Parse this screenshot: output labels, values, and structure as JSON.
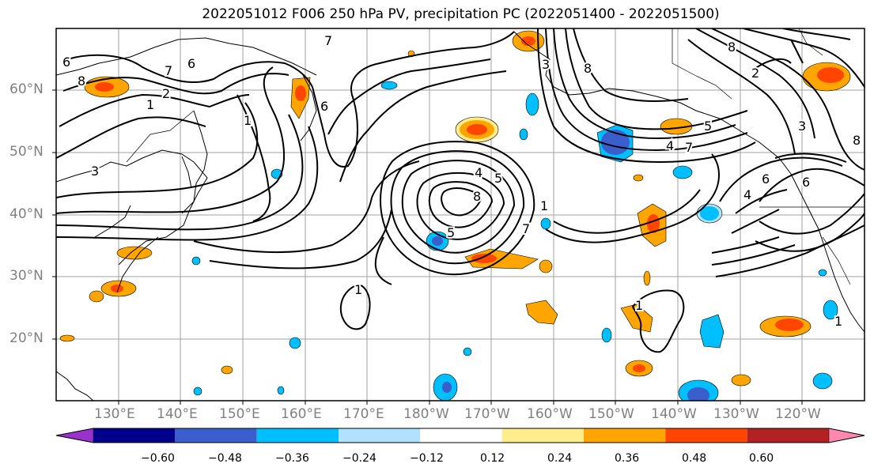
{
  "title": "2022051012 F006 250 hPa PV, precipitation PC (2022051400 - 2022051500)",
  "lat_labels": [
    "60°N",
    "50°N",
    "40°N",
    "30°N",
    "20°N"
  ],
  "lon_labels": [
    "130°E",
    "140°E",
    "150°E",
    "160°E",
    "170°E",
    "180°W",
    "170°W",
    "160°W",
    "150°W",
    "140°W",
    "130°W",
    "120°W"
  ],
  "colorbar": {
    "colors": [
      "#9932CC",
      "#00008B",
      "#3A5FCD",
      "#00BFFF",
      "#B0E2FF",
      "#FFFFFF",
      "#FFEC8B",
      "#FFA500",
      "#FF4500",
      "#B22222",
      "#FF88B0"
    ],
    "ticks": [
      "−0.60",
      "−0.48",
      "−0.36",
      "−0.24",
      "−0.12",
      "0.12",
      "0.24",
      "0.36",
      "0.48",
      "0.60"
    ]
  },
  "contour_labels": [
    "6",
    "8",
    "1",
    "2",
    "7",
    "4",
    "5",
    "8",
    "1",
    "7",
    "8",
    "6",
    "3",
    "7",
    "4",
    "5",
    "6",
    "3",
    "1",
    "1",
    "2",
    "8",
    "6",
    "8",
    "1",
    "6",
    "1",
    "3",
    "5",
    "4",
    "7"
  ]
}
